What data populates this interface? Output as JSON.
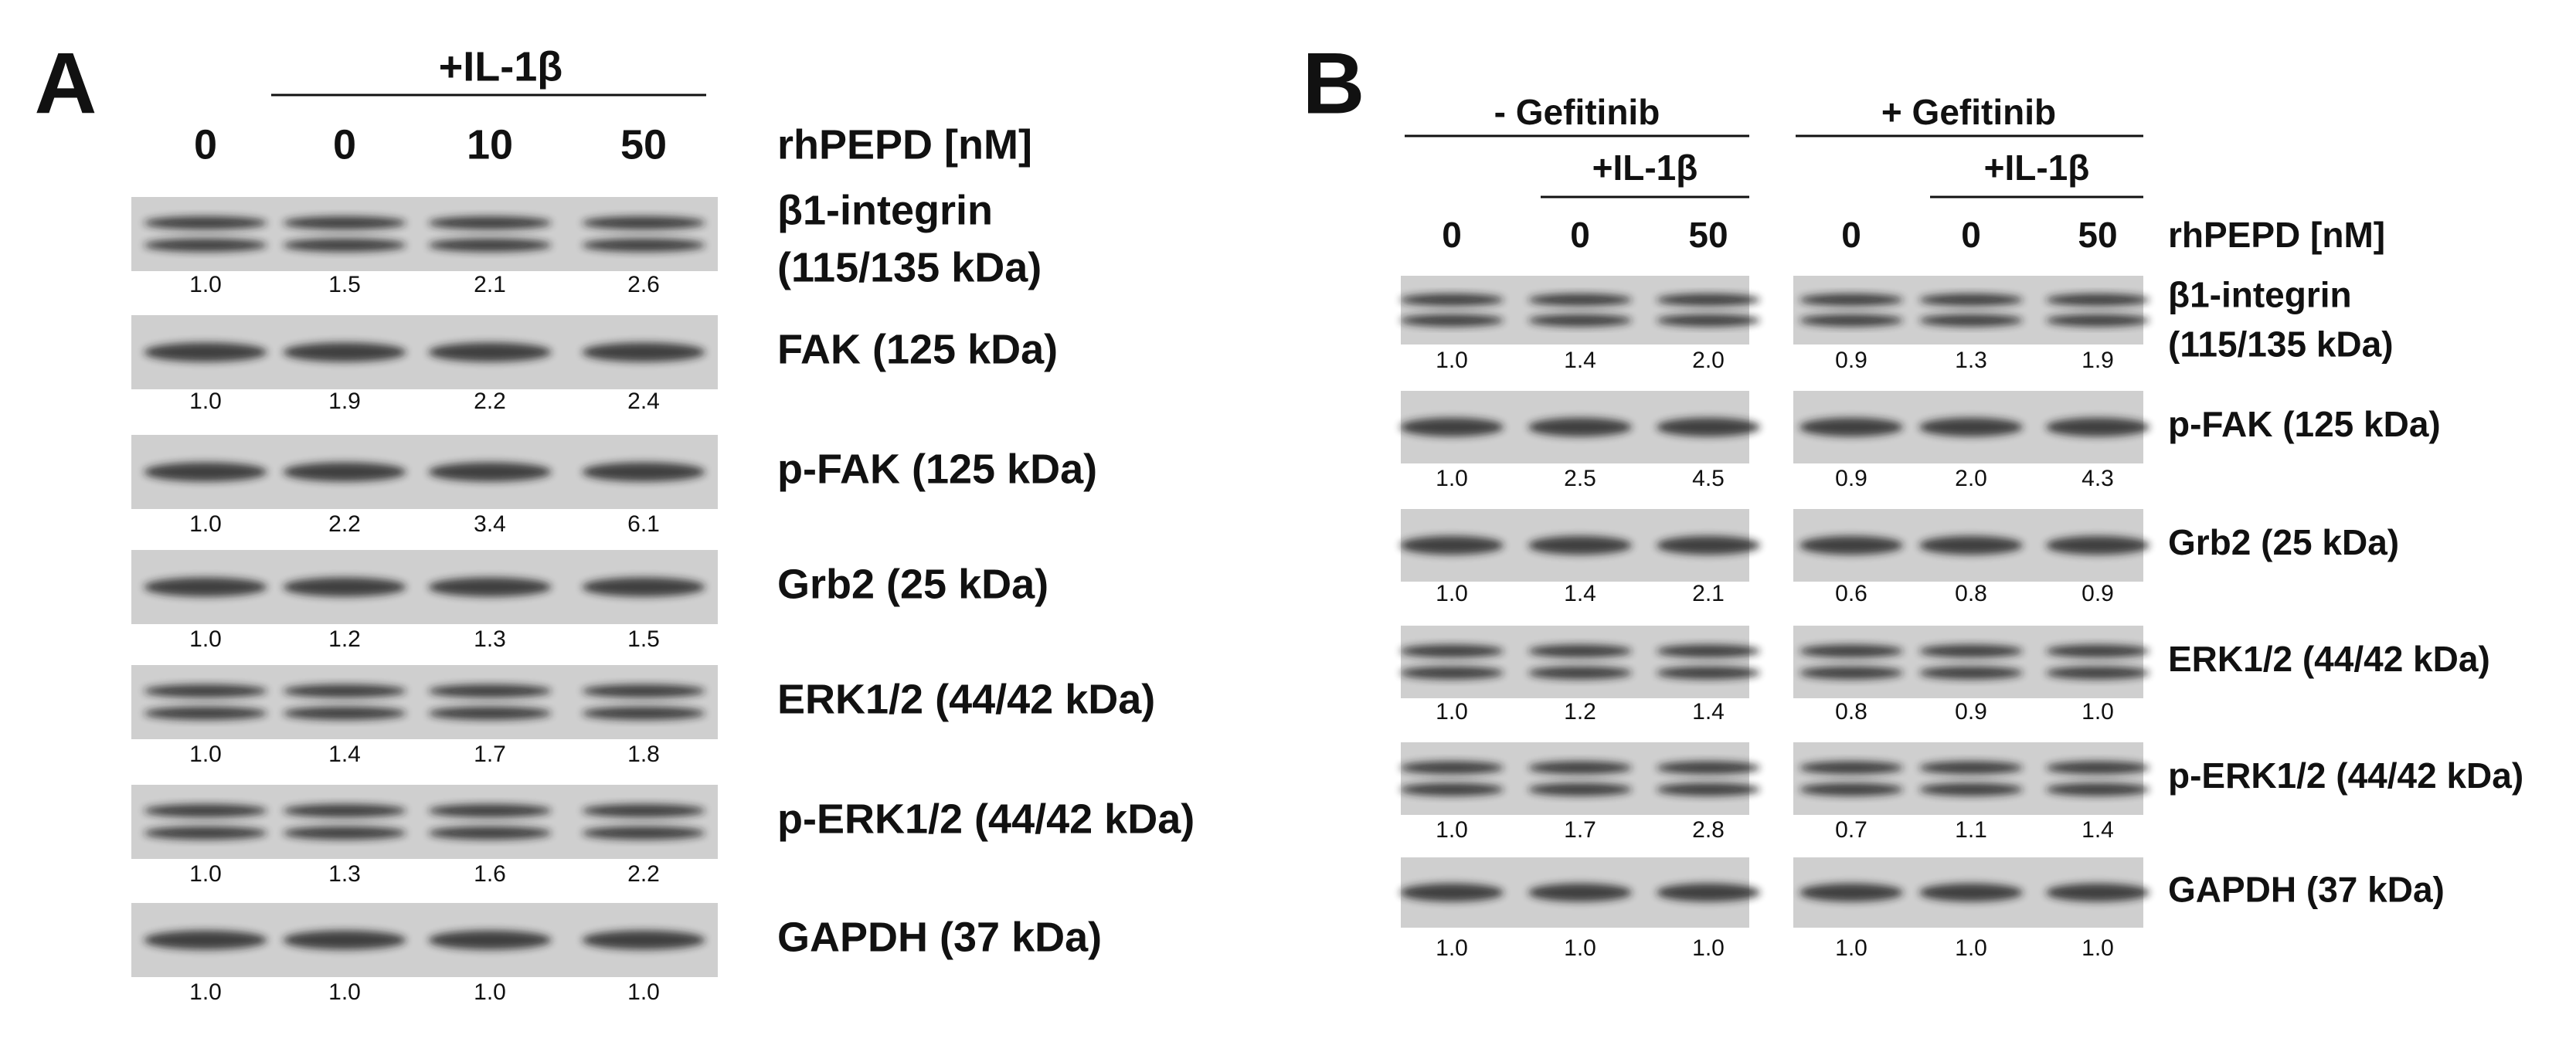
{
  "panels": [
    {
      "label": "A",
      "treatment": "+IL-1β",
      "lanes": [
        "0",
        "0",
        "10",
        "50"
      ],
      "lane_unit": "rhPEPD [nM]",
      "blots": [
        {
          "label": [
            "β1-integrin",
            "(115/135 kDa)"
          ],
          "values": [
            "1.0",
            "1.5",
            "2.1",
            "2.6"
          ]
        },
        {
          "label": [
            "FAK (125 kDa)"
          ],
          "values": [
            "1.0",
            "1.9",
            "2.2",
            "2.4"
          ]
        },
        {
          "label": [
            "p-FAK (125 kDa)"
          ],
          "values": [
            "1.0",
            "2.2",
            "3.4",
            "6.1"
          ]
        },
        {
          "label": [
            "Grb2 (25 kDa)"
          ],
          "values": [
            "1.0",
            "1.2",
            "1.3",
            "1.5"
          ]
        },
        {
          "label": [
            "ERK1/2 (44/42 kDa)"
          ],
          "values": [
            "1.0",
            "1.4",
            "1.7",
            "1.8"
          ]
        },
        {
          "label": [
            "p-ERK1/2 (44/42 kDa)"
          ],
          "values": [
            "1.0",
            "1.3",
            "1.6",
            "2.2"
          ]
        },
        {
          "label": [
            "GAPDH (37 kDa)"
          ],
          "values": [
            "1.0",
            "1.0",
            "1.0",
            "1.0"
          ]
        }
      ]
    },
    {
      "label": "B",
      "groups": [
        {
          "title": "- Gefitinib",
          "treatment": "+IL-1β",
          "lanes": [
            "0",
            "0",
            "50"
          ]
        },
        {
          "title": "+ Gefitinib",
          "treatment": "+IL-1β",
          "lanes": [
            "0",
            "0",
            "50"
          ]
        }
      ],
      "lane_unit": "rhPEPD [nM]",
      "blots": [
        {
          "label": [
            "β1-integrin",
            "(115/135 kDa)"
          ],
          "values": [
            "1.0",
            "1.4",
            "2.0",
            "0.9",
            "1.3",
            "1.9"
          ]
        },
        {
          "label": [
            "p-FAK (125 kDa)"
          ],
          "values": [
            "1.0",
            "2.5",
            "4.5",
            "0.9",
            "2.0",
            "4.3"
          ]
        },
        {
          "label": [
            "Grb2 (25 kDa)"
          ],
          "values": [
            "1.0",
            "1.4",
            "2.1",
            "0.6",
            "0.8",
            "0.9"
          ]
        },
        {
          "label": [
            "ERK1/2 (44/42 kDa)"
          ],
          "values": [
            "1.0",
            "1.2",
            "1.4",
            "0.8",
            "0.9",
            "1.0"
          ]
        },
        {
          "label": [
            "p-ERK1/2 (44/42 kDa)"
          ],
          "values": [
            "1.0",
            "1.7",
            "2.8",
            "0.7",
            "1.1",
            "1.4"
          ]
        },
        {
          "label": [
            "GAPDH (37 kDa)"
          ],
          "values": [
            "1.0",
            "1.0",
            "1.0",
            "1.0",
            "1.0",
            "1.0"
          ]
        }
      ]
    }
  ]
}
